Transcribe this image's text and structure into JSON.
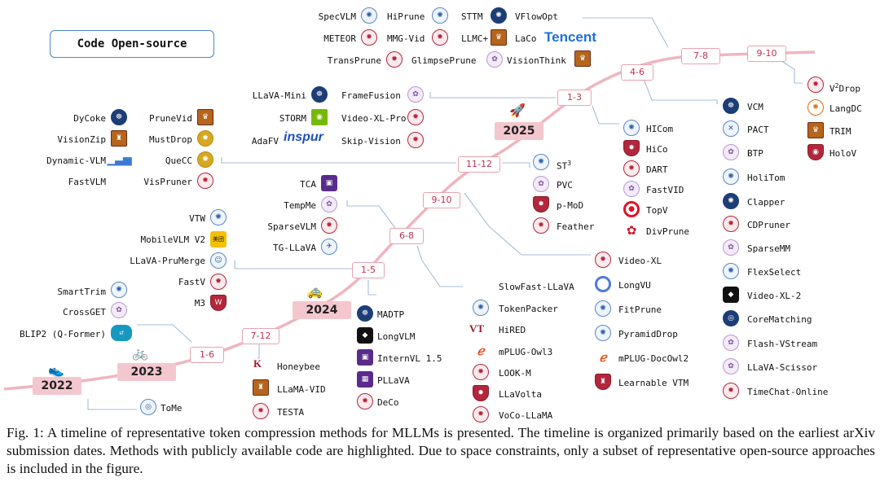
{
  "legend": {
    "label": "Code Open-source"
  },
  "years": [
    {
      "label": "2022"
    },
    {
      "label": "2023"
    },
    {
      "label": "2024"
    },
    {
      "label": "2025"
    }
  ],
  "periods": [
    {
      "label": "1-6"
    },
    {
      "label": "7-12"
    },
    {
      "label": "1-5"
    },
    {
      "label": "6-8"
    },
    {
      "label": "9-10"
    },
    {
      "label": "11-12"
    },
    {
      "label": "1-3"
    },
    {
      "label": "4-6"
    },
    {
      "label": "7-8"
    },
    {
      "label": "9-10"
    }
  ],
  "methods": [
    {
      "label": "ToMe",
      "icon": "university-seal-icon"
    },
    {
      "label": "SmartTrim",
      "icon": "university-seal-icon"
    },
    {
      "label": "CrossGET",
      "icon": "university-seal-icon"
    },
    {
      "label": "BLIP2 (Q-Former)",
      "icon": "salesforce-logo-icon"
    },
    {
      "label": "Honeybee",
      "icon": "kakao-brain-logo-icon"
    },
    {
      "label": "LLaMA-VID",
      "icon": "university-crest-icon"
    },
    {
      "label": "TESTA",
      "icon": "university-seal-icon"
    },
    {
      "label": "VTW",
      "icon": "university-seal-icon"
    },
    {
      "label": "MobileVLM V2",
      "icon": "meituan-logo-icon"
    },
    {
      "label": "LLaVA-PruMerge",
      "icon": "university-seal-icon"
    },
    {
      "label": "FastV",
      "icon": "university-seal-icon"
    },
    {
      "label": "M3",
      "icon": "university-shield-icon"
    },
    {
      "label": "MADTP",
      "icon": "university-seal-icon"
    },
    {
      "label": "LongVLM",
      "icon": "university-logo-icon"
    },
    {
      "label": "InternVL 1.5",
      "icon": "university-shield-icon"
    },
    {
      "label": "PLLaVA",
      "icon": "university-logo-icon"
    },
    {
      "label": "DeCo",
      "icon": "university-seal-icon"
    },
    {
      "label": "TCA",
      "icon": "university-shield-icon"
    },
    {
      "label": "TempMe",
      "icon": "university-seal-icon"
    },
    {
      "label": "SparseVLM",
      "icon": "university-seal-icon"
    },
    {
      "label": "TG-LLaVA",
      "icon": "university-seal-icon"
    },
    {
      "label": "SlowFast-LLaVA",
      "icon": "apple-logo-icon"
    },
    {
      "label": "TokenPacker",
      "icon": "university-seal-icon"
    },
    {
      "label": "HiRED",
      "icon": "vt-logo-icon"
    },
    {
      "label": "mPLUG-Owl3",
      "icon": "alibaba-logo-icon"
    },
    {
      "label": "LOOK-M",
      "icon": "university-seal-icon"
    },
    {
      "label": "LLaVolta",
      "icon": "university-shield-icon"
    },
    {
      "label": "VoCo-LLaMA",
      "icon": "university-seal-icon"
    },
    {
      "label": "Video-XL",
      "icon": "university-seal-icon"
    },
    {
      "label": "LongVU",
      "icon": "ring-logo-icon"
    },
    {
      "label": "FitPrune",
      "icon": "university-seal-icon"
    },
    {
      "label": "PyramidDrop",
      "icon": "university-seal-icon"
    },
    {
      "label": "mPLUG-DocOwl2",
      "icon": "alibaba-logo-icon"
    },
    {
      "label": "Learnable VTM",
      "icon": "university-shield-icon"
    },
    {
      "label": "DyCoke",
      "icon": "university-seal-icon"
    },
    {
      "label": "VisionZip",
      "icon": "university-crest-icon"
    },
    {
      "label": "Dynamic-VLM",
      "icon": "bar-logo-icon"
    },
    {
      "label": "FastVLM",
      "icon": "apple-logo-icon"
    },
    {
      "label": "PruneVid",
      "icon": "university-crest-icon"
    },
    {
      "label": "MustDrop",
      "icon": "university-seal-icon"
    },
    {
      "label": "QueCC",
      "icon": "university-seal-icon"
    },
    {
      "label": "VisPruner",
      "icon": "university-seal-icon"
    },
    {
      "label": "ST",
      "label_sup": "3",
      "icon": "university-seal-icon"
    },
    {
      "label": "PVC",
      "icon": "university-seal-icon"
    },
    {
      "label": "p-MoD",
      "icon": "university-shield-icon"
    },
    {
      "label": "Feather",
      "icon": "university-seal-icon"
    },
    {
      "label": "LLaVA-Mini",
      "icon": "university-seal-icon"
    },
    {
      "label": "STORM",
      "icon": "nvidia-logo-icon"
    },
    {
      "label": "AdaFV",
      "icon": "inspur-logo-icon",
      "brand": "inspur"
    },
    {
      "label": "FrameFusion",
      "icon": "university-seal-icon"
    },
    {
      "label": "Video-XL-Pro",
      "icon": "university-seal-icon"
    },
    {
      "label": "Skip-Vision",
      "icon": "university-seal-icon"
    },
    {
      "label": "HICom",
      "icon": "university-seal-icon"
    },
    {
      "label": "HiCo",
      "icon": "university-shield-icon"
    },
    {
      "label": "DART",
      "icon": "university-seal-icon"
    },
    {
      "label": "FastVID",
      "icon": "university-seal-icon"
    },
    {
      "label": "TopV",
      "icon": "target-logo-icon"
    },
    {
      "label": "DivPrune",
      "icon": "huawei-logo-icon"
    },
    {
      "label": "SpecVLM",
      "icon": "university-seal-icon"
    },
    {
      "label": "HiPrune",
      "icon": "university-seal-icon"
    },
    {
      "label": "STTM",
      "icon": "university-seal-icon"
    },
    {
      "label": "VFlowOpt",
      "icon": "university-banner-icon"
    },
    {
      "label": "METEOR",
      "icon": "university-seal-icon"
    },
    {
      "label": "MMG-Vid",
      "icon": "university-seal-icon"
    },
    {
      "label": "LLMC+",
      "icon": "university-crest-icon"
    },
    {
      "label": "LaCo",
      "icon": "tencent-logo-icon",
      "brand": "Tencent"
    },
    {
      "label": "TransPrune",
      "icon": "university-seal-icon"
    },
    {
      "label": "GlimpsePrune",
      "icon": "university-seal-icon"
    },
    {
      "label": "VisionThink",
      "icon": "university-crest-icon"
    },
    {
      "label": "VCM",
      "icon": "university-seal-icon"
    },
    {
      "label": "PACT",
      "icon": "university-logo-icon"
    },
    {
      "label": "BTP",
      "icon": "university-seal-icon"
    },
    {
      "label": "HoliTom",
      "icon": "university-seal-icon"
    },
    {
      "label": "Clapper",
      "icon": "university-seal-icon"
    },
    {
      "label": "CDPruner",
      "icon": "university-seal-icon"
    },
    {
      "label": "SparseMM",
      "icon": "university-seal-icon"
    },
    {
      "label": "FlexSelect",
      "icon": "university-seal-icon"
    },
    {
      "label": "Video-XL-2",
      "icon": "university-logo-icon"
    },
    {
      "label": "CoreMatching",
      "icon": "university-seal-icon"
    },
    {
      "label": "Flash-VStream",
      "icon": "university-seal-icon"
    },
    {
      "label": "LLaVA-Scissor",
      "icon": "university-seal-icon"
    },
    {
      "label": "TimeChat-Online",
      "icon": "university-seal-icon"
    },
    {
      "label": "V",
      "label_sup": "2",
      "label_rest": "Drop",
      "icon": "university-seal-icon"
    },
    {
      "label": "LangDC",
      "icon": "university-seal-icon"
    },
    {
      "label": "TRIM",
      "icon": "university-crest-icon"
    },
    {
      "label": "HoloV",
      "icon": "university-shield-icon"
    }
  ],
  "caption": "Fig. 1: A timeline of representative token compression methods for MLLMs is presented. The timeline is organized primarily based on the earliest arXiv submission dates. Methods with publicly available code are highlighted. Due to space constraints, only a subset of representative open-source approaches is included in the figure.",
  "colors": {
    "timeline": "#f0b5bf",
    "period_border": "#e9a3ae",
    "period_text": "#c03050",
    "year_fill": "#f4c7cf",
    "connector": "#a7bcd8",
    "legend_border": "#4a86c9"
  }
}
